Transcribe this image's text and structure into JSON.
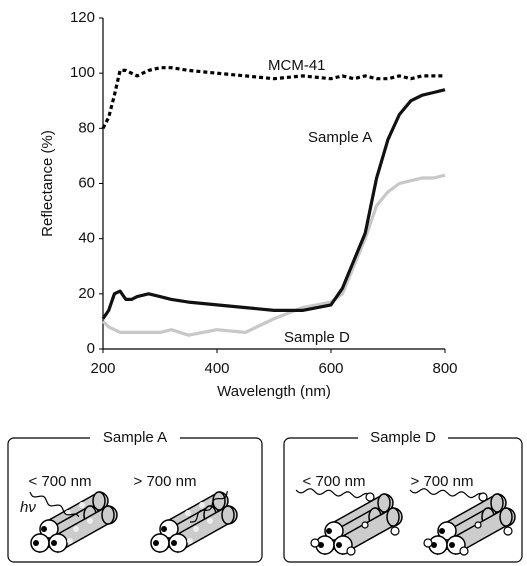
{
  "chart_data": {
    "type": "line",
    "xlabel": "Wavelength (nm)",
    "ylabel": "Reflectance (%)",
    "x": [
      200,
      210,
      220,
      230,
      240,
      250,
      260,
      280,
      300,
      320,
      350,
      400,
      450,
      500,
      550,
      600,
      620,
      640,
      660,
      680,
      700,
      720,
      740,
      760,
      780,
      800
    ],
    "series": [
      {
        "name": "MCM-41",
        "color": "#000000",
        "dash": "dotted",
        "values": [
          80,
          84,
          92,
          101,
          101,
          100,
          99,
          101,
          102,
          102,
          101,
          100,
          99,
          98,
          99,
          98,
          99,
          98,
          99,
          98,
          98,
          99,
          98,
          99,
          99,
          99
        ]
      },
      {
        "name": "Sample A",
        "color": "#111111",
        "dash": "solid",
        "values": [
          11,
          14,
          20,
          21,
          18,
          18,
          19,
          20,
          19,
          18,
          17,
          16,
          15,
          14,
          14,
          16,
          22,
          32,
          42,
          62,
          76,
          85,
          90,
          92,
          93,
          94
        ]
      },
      {
        "name": "Sample D",
        "color": "#c8c8c8",
        "dash": "solid",
        "values": [
          10,
          8,
          7,
          6,
          6,
          6,
          6,
          6,
          6,
          7,
          5,
          7,
          6,
          11,
          15,
          17,
          20,
          30,
          40,
          52,
          57,
          60,
          61,
          62,
          62,
          63
        ]
      }
    ],
    "xlim": [
      200,
      800
    ],
    "xticks": [
      200,
      400,
      600,
      800
    ],
    "ylim": [
      0,
      120
    ],
    "yticks": [
      0,
      20,
      40,
      60,
      80,
      100,
      120
    ],
    "grid": false
  },
  "panels": [
    {
      "title": "Sample A",
      "labels": [
        "< 700 nm",
        "> 700 nm"
      ],
      "photon": "hν"
    },
    {
      "title": "Sample D",
      "labels": [
        "< 700 nm",
        "> 700 nm"
      ]
    }
  ]
}
